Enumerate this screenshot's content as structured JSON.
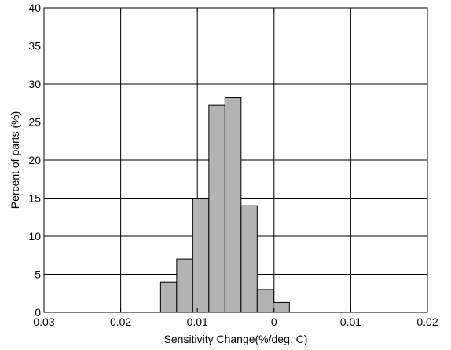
{
  "chart_data": {
    "type": "bar",
    "xlabel": "Sensitivity Change(%/deg. C)",
    "ylabel": "Percent of parts (%)",
    "x_tick_labels": [
      "0.03",
      "0.02",
      "0.01",
      "0",
      "0.01",
      "0.02"
    ],
    "y_tick_labels": [
      "0",
      "5",
      "10",
      "15",
      "20",
      "25",
      "30",
      "35",
      "40"
    ],
    "xlim": [
      -0.03,
      0.02
    ],
    "ylim": [
      0,
      40
    ],
    "grid": true,
    "bar_color": "#b3b3b3",
    "bar_edge_color": "#000000",
    "bars": [
      {
        "x_start": -0.0148,
        "x_end": -0.0127,
        "value": 4
      },
      {
        "x_start": -0.0127,
        "x_end": -0.0106,
        "value": 7
      },
      {
        "x_start": -0.0106,
        "x_end": -0.0085,
        "value": 15
      },
      {
        "x_start": -0.0085,
        "x_end": -0.0064,
        "value": 27.2
      },
      {
        "x_start": -0.0064,
        "x_end": -0.0043,
        "value": 28.2
      },
      {
        "x_start": -0.0043,
        "x_end": -0.0022,
        "value": 14
      },
      {
        "x_start": -0.0022,
        "x_end": -0.0001,
        "value": 3
      },
      {
        "x_start": -0.0001,
        "x_end": 0.002,
        "value": 1.3
      }
    ]
  }
}
